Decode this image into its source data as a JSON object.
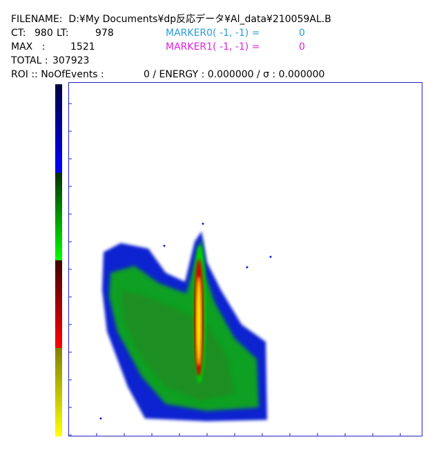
{
  "header": {
    "filename": "FILENAME:  D:¥My Documents¥dp反応データ¥Al_data¥210059AL.B",
    "ct_label": "CT:",
    "ct": 980,
    "lt_label": "LT:",
    "lt": 978,
    "marker0_label": "MARKER0( -1, -1) =",
    "marker0": 0,
    "max_label": "MAX   :",
    "max": 1521,
    "marker1_label": "MARKER1( -1, -1) =",
    "marker1": 0,
    "total_label": "TOTAL :",
    "total": 307923,
    "roi_label": "ROI :: NoOfEvents :",
    "roi_values": "0 / ENERGY : 0.000000 / σ : 0.000000"
  }
}
